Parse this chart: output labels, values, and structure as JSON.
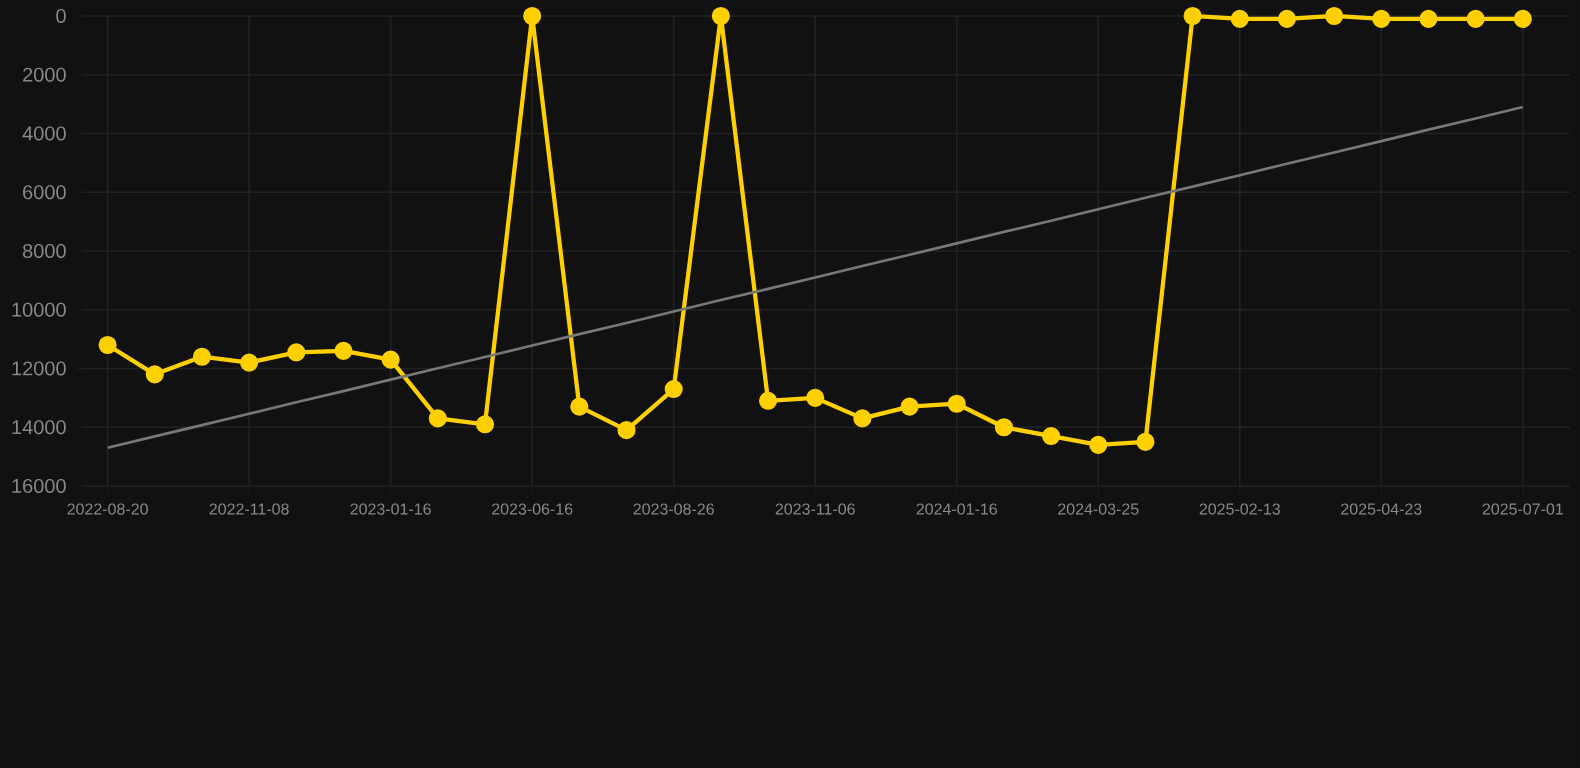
{
  "chart_data": {
    "type": "line",
    "categories": [
      "2022-08-20",
      null,
      null,
      "2022-11-08",
      null,
      null,
      "2023-01-16",
      null,
      null,
      "2023-06-16",
      null,
      null,
      "2023-08-26",
      null,
      null,
      "2023-11-06",
      null,
      null,
      "2024-01-16",
      null,
      null,
      "2024-03-25",
      null,
      null,
      "2025-02-13",
      null,
      null,
      "2025-04-23",
      null,
      null,
      "2025-07-01"
    ],
    "series": [
      {
        "color": "#ffd000",
        "marker": "circle",
        "values": [
          11200,
          12200,
          11600,
          11800,
          11450,
          11400,
          11700,
          13700,
          13900,
          0,
          13300,
          14100,
          12700,
          0,
          13100,
          13000,
          13700,
          13300,
          13200,
          14000,
          14300,
          14600,
          14500,
          0,
          100,
          100,
          0,
          100,
          100,
          100,
          100
        ]
      },
      {
        "type": "line",
        "color": "#777777",
        "marker": "none",
        "values": [
          14700,
          14310,
          13930,
          13540,
          13150,
          12770,
          12380,
          11990,
          11610,
          11220,
          10830,
          10450,
          10060,
          9670,
          9290,
          8900,
          8510,
          8130,
          7740,
          7350,
          6970,
          6580,
          6190,
          5810,
          5420,
          5030,
          4650,
          4260,
          3870,
          3490,
          3100
        ]
      }
    ],
    "ylim": [
      16000,
      0
    ],
    "yticks": [
      0,
      2000,
      4000,
      6000,
      8000,
      10000,
      12000,
      14000,
      16000
    ],
    "grid": true
  }
}
